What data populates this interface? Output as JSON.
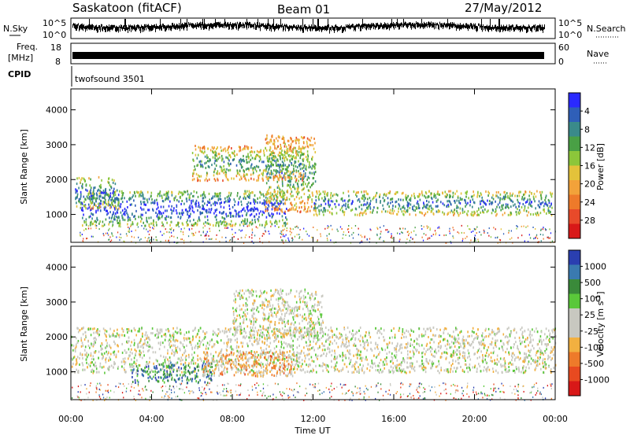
{
  "header": {
    "station": "Saskatoon (fitACF)",
    "beam": "Beam 01",
    "date": "27/May/2012"
  },
  "params_panel": {
    "nsky_label": "N.Sky",
    "nsky_ticks": [
      "10^5",
      "10^0"
    ],
    "nsearch_label": "N.Search",
    "nsearch_ticks": [
      "10^5",
      "10^0"
    ],
    "freq_label": "Freq.",
    "freq_unit": "[MHz]",
    "freq_ticks": [
      "18",
      "8"
    ],
    "nave_label": "Nave",
    "nave_ticks": [
      "60",
      "0"
    ],
    "cpid_label": "CPID",
    "cpid_value": "twofsound 3501"
  },
  "chart_data": [
    {
      "type": "heatmap",
      "name": "power",
      "ylabel": "Slant Range [km]",
      "ylim": [
        200,
        4600
      ],
      "yticks": [
        "1000",
        "2000",
        "3000",
        "4000"
      ],
      "x_range_hours": [
        0,
        24
      ],
      "colorbar": {
        "label": "Power [dB]",
        "tick_labels": [
          "4",
          "8",
          "12",
          "16",
          "20",
          "24",
          "28"
        ],
        "colors": [
          "#2a2aff",
          "#2f5fb8",
          "#3a8a8a",
          "#49a045",
          "#8cc63a",
          "#e3c23a",
          "#f2a23a",
          "#ee7a2a",
          "#e84a2a",
          "#d81818"
        ]
      },
      "bands": [
        {
          "t0": 0.5,
          "t1": 10.7,
          "r0": 700,
          "r1": 1700,
          "level": 0.85
        },
        {
          "t0": 9.6,
          "t1": 12.1,
          "r0": 1100,
          "r1": 3300,
          "level": 0.45
        },
        {
          "t0": 12.0,
          "t1": 23.9,
          "r0": 1000,
          "r1": 1700,
          "level": 0.65
        },
        {
          "t0": 0.2,
          "t1": 2.4,
          "r0": 1200,
          "r1": 2100,
          "level": 0.7
        },
        {
          "t0": 6.0,
          "t1": 11.5,
          "r0": 2000,
          "r1": 3000,
          "level": 0.45
        }
      ]
    },
    {
      "type": "heatmap",
      "name": "velocity",
      "ylabel": "Slant Range [km]",
      "ylim": [
        200,
        4600
      ],
      "yticks": [
        "1000",
        "2000",
        "3000",
        "4000"
      ],
      "x_range_hours": [
        0,
        24
      ],
      "xticks": [
        "00:00",
        "04:00",
        "08:00",
        "12:00",
        "16:00",
        "20:00",
        "00:00"
      ],
      "xlabel": "Time UT",
      "colorbar": {
        "label": "Velocity [m s",
        "label_sup": "-1",
        "label_end": "]",
        "tick_labels": [
          "1000",
          "500",
          "100",
          "25",
          "-25",
          "-100",
          "-500",
          "-1000"
        ],
        "colors": [
          "#2a3fb0",
          "#3a7ab0",
          "#3a8a3a",
          "#5ac83a",
          "#c8c8c0",
          "#c8c8c0",
          "#f2b040",
          "#ee7a2a",
          "#e84a20",
          "#d81818"
        ]
      },
      "bands": [
        {
          "t0": 0.0,
          "t1": 24.0,
          "r0": 1000,
          "r1": 2300,
          "level": 0.5
        },
        {
          "t0": 3.0,
          "t1": 7.0,
          "r0": 700,
          "r1": 1300,
          "level": 0.8
        },
        {
          "t0": 6.5,
          "t1": 11.0,
          "r0": 900,
          "r1": 1600,
          "level": 0.35
        },
        {
          "t0": 8.0,
          "t1": 12.5,
          "r0": 2000,
          "r1": 3400,
          "level": 0.5
        }
      ]
    }
  ]
}
